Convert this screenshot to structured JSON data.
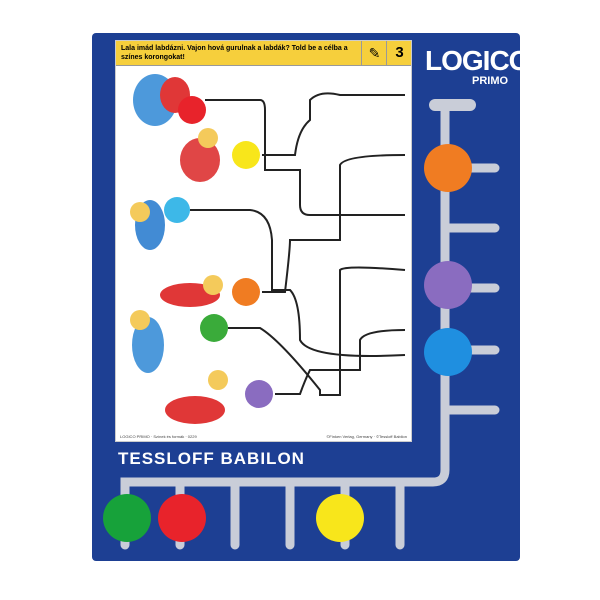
{
  "card": {
    "question": "Lala imád labdázni. Vajon hová gurulnak a labdák? Told be a célba a színes korongokat!",
    "task_number": "3",
    "footer_left": "LOGICO PRIMO · Színek és formák · 0229",
    "footer_right": "©Finken Verlag, Germany · ©Tessloff Babilon"
  },
  "logo": {
    "name": "LOGICO",
    "sub": "PRIMO"
  },
  "brand": "TESSLOFF BABILON",
  "colors": {
    "board": "#1d3f93",
    "header": "#f6cf3c",
    "red": "#e8232b",
    "yellow": "#f8e61b",
    "light_blue": "#3db8e8",
    "orange": "#f07c22",
    "green": "#3aab3a",
    "purple": "#8a6cc0",
    "blue": "#1f8fe0"
  },
  "card_balls": [
    "red",
    "yellow",
    "light_blue",
    "orange",
    "green",
    "purple"
  ],
  "right_slot_discs": [
    "orange",
    "purple",
    "blue"
  ],
  "bottom_slot_discs": [
    "green",
    "red",
    "yellow"
  ]
}
